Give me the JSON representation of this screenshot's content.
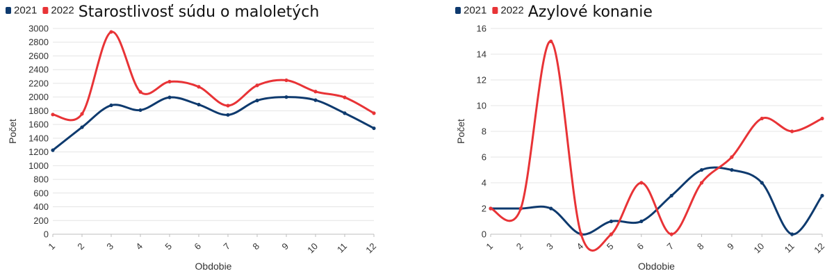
{
  "chart_data": [
    {
      "type": "line",
      "title": "Starostlivosť súdu o maloletých",
      "xlabel": "Obdobie",
      "ylabel": "Počet",
      "categories": [
        "1",
        "2",
        "3",
        "4",
        "5",
        "6",
        "7",
        "8",
        "9",
        "10",
        "11",
        "12"
      ],
      "ylim": [
        0,
        3000
      ],
      "yticks": [
        0,
        200,
        400,
        600,
        800,
        1000,
        1200,
        1400,
        1600,
        1800,
        2000,
        2200,
        2400,
        2600,
        2800,
        3000
      ],
      "grid": true,
      "smooth": true,
      "legend_position": "top-left",
      "series": [
        {
          "name": "2021",
          "color": "#0e3a6e",
          "values": [
            1225,
            1560,
            1880,
            1810,
            1995,
            1890,
            1740,
            1950,
            2000,
            1955,
            1765,
            1545
          ]
        },
        {
          "name": "2022",
          "color": "#e83336",
          "values": [
            1745,
            1755,
            2950,
            2075,
            2225,
            2150,
            1875,
            2170,
            2245,
            2080,
            1995,
            1765
          ]
        }
      ]
    },
    {
      "type": "line",
      "title": "Azylové konanie",
      "xlabel": "Obdobie",
      "ylabel": "Počet",
      "categories": [
        "1",
        "2",
        "3",
        "4",
        "5",
        "6",
        "7",
        "8",
        "9",
        "10",
        "11",
        "12"
      ],
      "ylim": [
        0,
        16
      ],
      "yticks": [
        0,
        2,
        4,
        6,
        8,
        10,
        12,
        14,
        16
      ],
      "grid": true,
      "smooth": true,
      "legend_position": "top-left",
      "series": [
        {
          "name": "2021",
          "color": "#0e3a6e",
          "values": [
            2,
            2,
            2,
            0,
            1,
            1,
            3,
            5,
            5,
            4,
            0,
            3
          ]
        },
        {
          "name": "2022",
          "color": "#e83336",
          "values": [
            2,
            2,
            15,
            0,
            0,
            4,
            0,
            4,
            6,
            9,
            8,
            9
          ]
        }
      ]
    }
  ]
}
